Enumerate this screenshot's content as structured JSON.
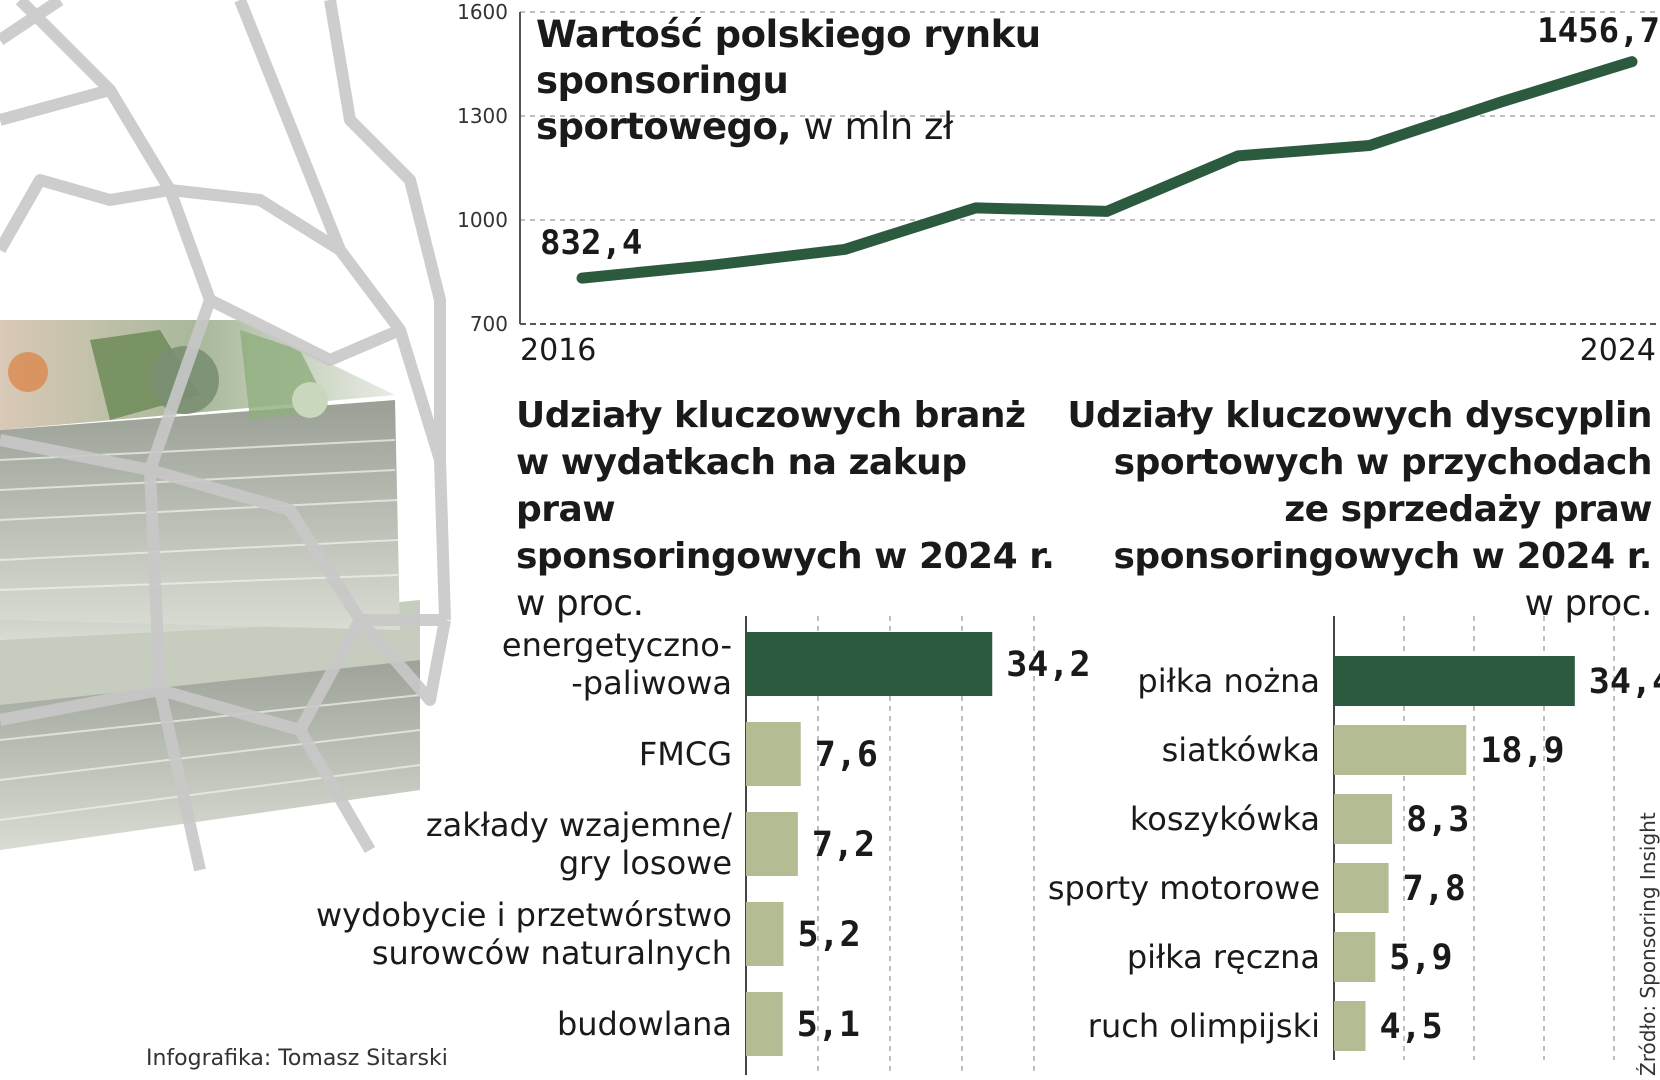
{
  "colors": {
    "accent_dark_green": "#2b5a3e",
    "bar_light_green": "#b3bc92",
    "grid": "#aaaaaa"
  },
  "chart_data": [
    {
      "type": "line",
      "title": "Wartość polskiego rynku sponsoringu sportowego,",
      "title_line1": "Wartość polskiego rynku sponsoringu",
      "title_line2": "sportowego,",
      "unit": "w mln zł",
      "x": [
        2016,
        2017,
        2018,
        2019,
        2020,
        2021,
        2022,
        2023,
        2024
      ],
      "values": [
        832.4,
        870,
        915,
        1035,
        1025,
        1185,
        1215,
        1340,
        1456.7
      ],
      "x_tick_labels": [
        "2016",
        "2024"
      ],
      "y_ticks": [
        "700",
        "1000",
        "1300",
        "1600"
      ],
      "ylim": [
        700,
        1600
      ],
      "start_label": "832,4",
      "end_label": "1456,7",
      "grid": true
    },
    {
      "type": "bar",
      "orientation": "horizontal",
      "title_line1": "Udziały kluczowych branż",
      "title_line2": "w wydatkach na zakup praw",
      "title_line3": "sponsoringowych w 2024 r.",
      "unit": "w proc.",
      "categories": [
        [
          "energetyczno-",
          "-paliwowa"
        ],
        [
          "FMCG"
        ],
        [
          "zakłady wzajemne/",
          "gry losowe"
        ],
        [
          "wydobycie i przetwórstwo",
          "surowców naturalnych"
        ],
        [
          "budowlana"
        ]
      ],
      "values": [
        34.2,
        7.6,
        7.2,
        5.2,
        5.1
      ],
      "value_labels": [
        "34,2",
        "7,6",
        "7,2",
        "5,2",
        "5,1"
      ],
      "highlight_index": 0
    },
    {
      "type": "bar",
      "orientation": "horizontal",
      "title_line1": "Udziały kluczowych dyscyplin",
      "title_line2": "sportowych w przychodach",
      "title_line3": "ze sprzedaży praw",
      "title_line4": "sponsoringowych w 2024 r.",
      "unit": "w proc.",
      "categories": [
        "piłka nożna",
        "siatkówka",
        "koszykówka",
        "sporty motorowe",
        "piłka ręczna",
        "ruch olimpijski"
      ],
      "values": [
        34.4,
        18.9,
        8.3,
        7.8,
        5.9,
        4.5
      ],
      "value_labels": [
        "34,4",
        "18,9",
        "8,3",
        "7,8",
        "5,9",
        "4,5"
      ],
      "highlight_index": 0
    }
  ],
  "footer": {
    "credit": "Infografika: Tomasz Sitarski",
    "source": "Źródło: Sponsoring Insight"
  }
}
